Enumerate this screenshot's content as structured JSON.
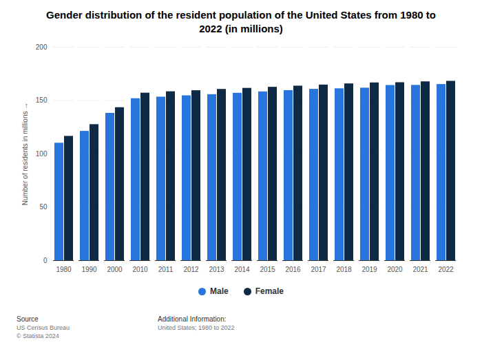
{
  "chart_data": {
    "type": "bar",
    "title": "Gender distribution of the resident population of the United States from 1980 to 2022 (in millions)",
    "y_label": "Number of residents in millions",
    "categories": [
      "1980",
      "1990",
      "2000",
      "2010",
      "2011",
      "2012",
      "2013",
      "2014",
      "2015",
      "2016",
      "2017",
      "2018",
      "2019",
      "2020",
      "2021",
      "2022"
    ],
    "series": [
      {
        "name": "Male",
        "color": "#2876dd",
        "values": [
          110.1,
          121.2,
          138.1,
          151.8,
          153.3,
          154.5,
          155.6,
          156.9,
          158.2,
          159.4,
          160.6,
          161.1,
          161.7,
          164.2,
          164.3,
          165.1
        ]
      },
      {
        "name": "Female",
        "color": "#0f2a44",
        "values": [
          116.5,
          127.5,
          143.4,
          157.0,
          158.3,
          159.3,
          160.5,
          161.5,
          162.5,
          163.6,
          164.6,
          165.7,
          166.6,
          166.8,
          167.6,
          168.1
        ]
      }
    ],
    "ylim": [
      0,
      200
    ],
    "yticks": [
      0,
      50,
      100,
      150,
      200
    ],
    "grid": true,
    "legend": "bottom",
    "source_label": "Source",
    "source": "US Census Bureau",
    "copyright": "© Statista 2024",
    "additional_label": "Additional Information:",
    "additional": "United States; 1980 to 2022"
  }
}
